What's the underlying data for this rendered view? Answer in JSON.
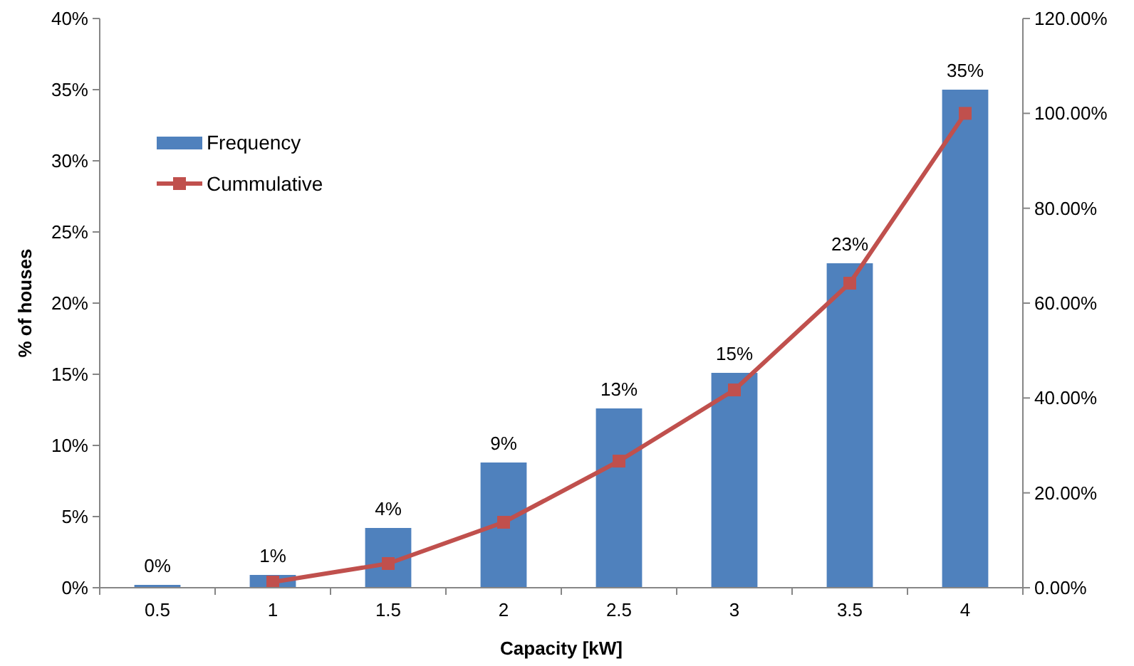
{
  "chart_data": {
    "type": "bar",
    "xlabel": "Capacity [kW]",
    "ylabel": "% of houses",
    "categories": [
      "0.5",
      "1",
      "1.5",
      "2",
      "2.5",
      "3",
      "3.5",
      "4"
    ],
    "series": [
      {
        "name": "Frequency",
        "color": "#4f81bd",
        "values": [
          0.2,
          0.9,
          4.2,
          8.8,
          12.6,
          15.1,
          22.8,
          35.0
        ],
        "value_labels": [
          "0%",
          "1%",
          "4%",
          "9%",
          "13%",
          "15%",
          "23%",
          "35%"
        ]
      },
      {
        "name": "Cummulative",
        "type": "line",
        "axis": "y2",
        "color": "#c0504d",
        "marker": "square",
        "values": [
          null,
          1.2,
          5.1,
          13.8,
          26.7,
          41.7,
          64.2,
          100
        ]
      }
    ],
    "ylim": [
      0,
      40
    ],
    "yticks": [
      {
        "value": 0,
        "label": "0%"
      },
      {
        "value": 5,
        "label": "5%"
      },
      {
        "value": 10,
        "label": "10%"
      },
      {
        "value": 15,
        "label": "15%"
      },
      {
        "value": 20,
        "label": "20%"
      },
      {
        "value": 25,
        "label": "25%"
      },
      {
        "value": 30,
        "label": "30%"
      },
      {
        "value": 35,
        "label": "35%"
      },
      {
        "value": 40,
        "label": "40%"
      }
    ],
    "y2lim": [
      0,
      120
    ],
    "y2ticks": [
      {
        "value": 0,
        "label": "0.00%"
      },
      {
        "value": 20,
        "label": "20.00%"
      },
      {
        "value": 40,
        "label": "40.00%"
      },
      {
        "value": 60,
        "label": "60.00%"
      },
      {
        "value": 80,
        "label": "80.00%"
      },
      {
        "value": 100,
        "label": "100.00%"
      },
      {
        "value": 120,
        "label": "120.00%"
      }
    ],
    "grid": false,
    "legend": "top left"
  }
}
